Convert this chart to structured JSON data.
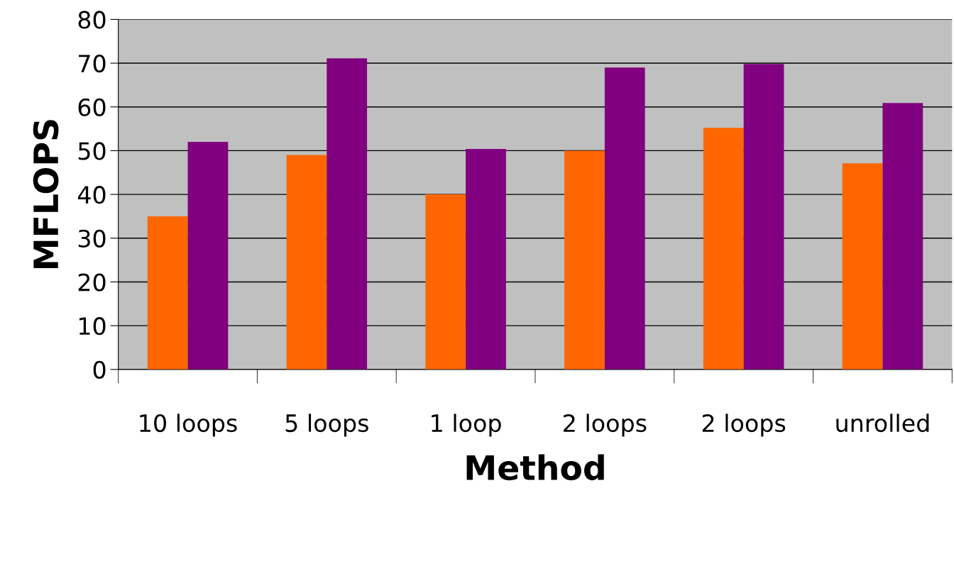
{
  "chart_data": {
    "type": "bar",
    "xlabel": "Method",
    "ylabel": "MFLOPS",
    "categories": [
      "10 loops",
      "5 loops",
      "1 loop",
      "2 loops",
      "2 loops",
      "unrolled"
    ],
    "series": [
      {
        "color": "#ff6600",
        "values": [
          35,
          49,
          40,
          50,
          55.2,
          47.1
        ]
      },
      {
        "color": "#800080",
        "values": [
          52,
          71.1,
          50.4,
          69,
          69.8,
          60.9
        ]
      }
    ],
    "ylim": [
      0,
      80
    ],
    "yticks": [
      0,
      10,
      20,
      30,
      40,
      50,
      60,
      70,
      80
    ],
    "grid": "y"
  }
}
